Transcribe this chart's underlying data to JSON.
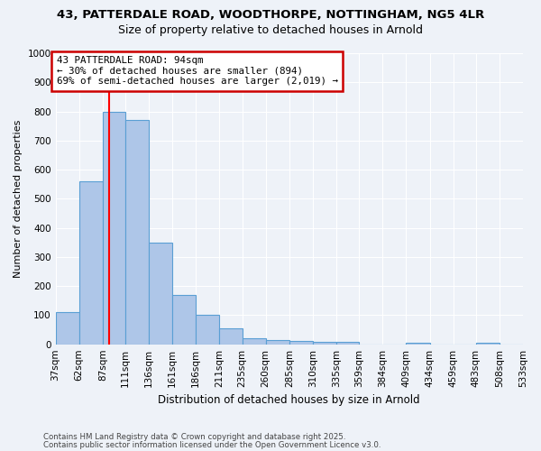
{
  "title_line1": "43, PATTERDALE ROAD, WOODTHORPE, NOTTINGHAM, NG5 4LR",
  "title_line2": "Size of property relative to detached houses in Arnold",
  "xlabel": "Distribution of detached houses by size in Arnold",
  "ylabel": "Number of detached properties",
  "bins": [
    37,
    62,
    87,
    111,
    136,
    161,
    186,
    211,
    235,
    260,
    285,
    310,
    335,
    359,
    384,
    409,
    434,
    459,
    483,
    508,
    533
  ],
  "heights": [
    110,
    560,
    800,
    770,
    350,
    170,
    100,
    55,
    20,
    15,
    10,
    8,
    8,
    0,
    0,
    5,
    0,
    0,
    5,
    0
  ],
  "bar_color": "#aec6e8",
  "bar_edge_color": "#5a9fd4",
  "red_line_x": 94,
  "ylim": [
    0,
    1000
  ],
  "yticks": [
    0,
    100,
    200,
    300,
    400,
    500,
    600,
    700,
    800,
    900,
    1000
  ],
  "annotation_text": "43 PATTERDALE ROAD: 94sqm\n← 30% of detached houses are smaller (894)\n69% of semi-detached houses are larger (2,019) →",
  "annotation_box_color": "#ffffff",
  "annotation_box_edge": "#cc0000",
  "footnote_line1": "Contains HM Land Registry data © Crown copyright and database right 2025.",
  "footnote_line2": "Contains public sector information licensed under the Open Government Licence v3.0.",
  "bg_color": "#eef2f8",
  "grid_color": "#ffffff"
}
